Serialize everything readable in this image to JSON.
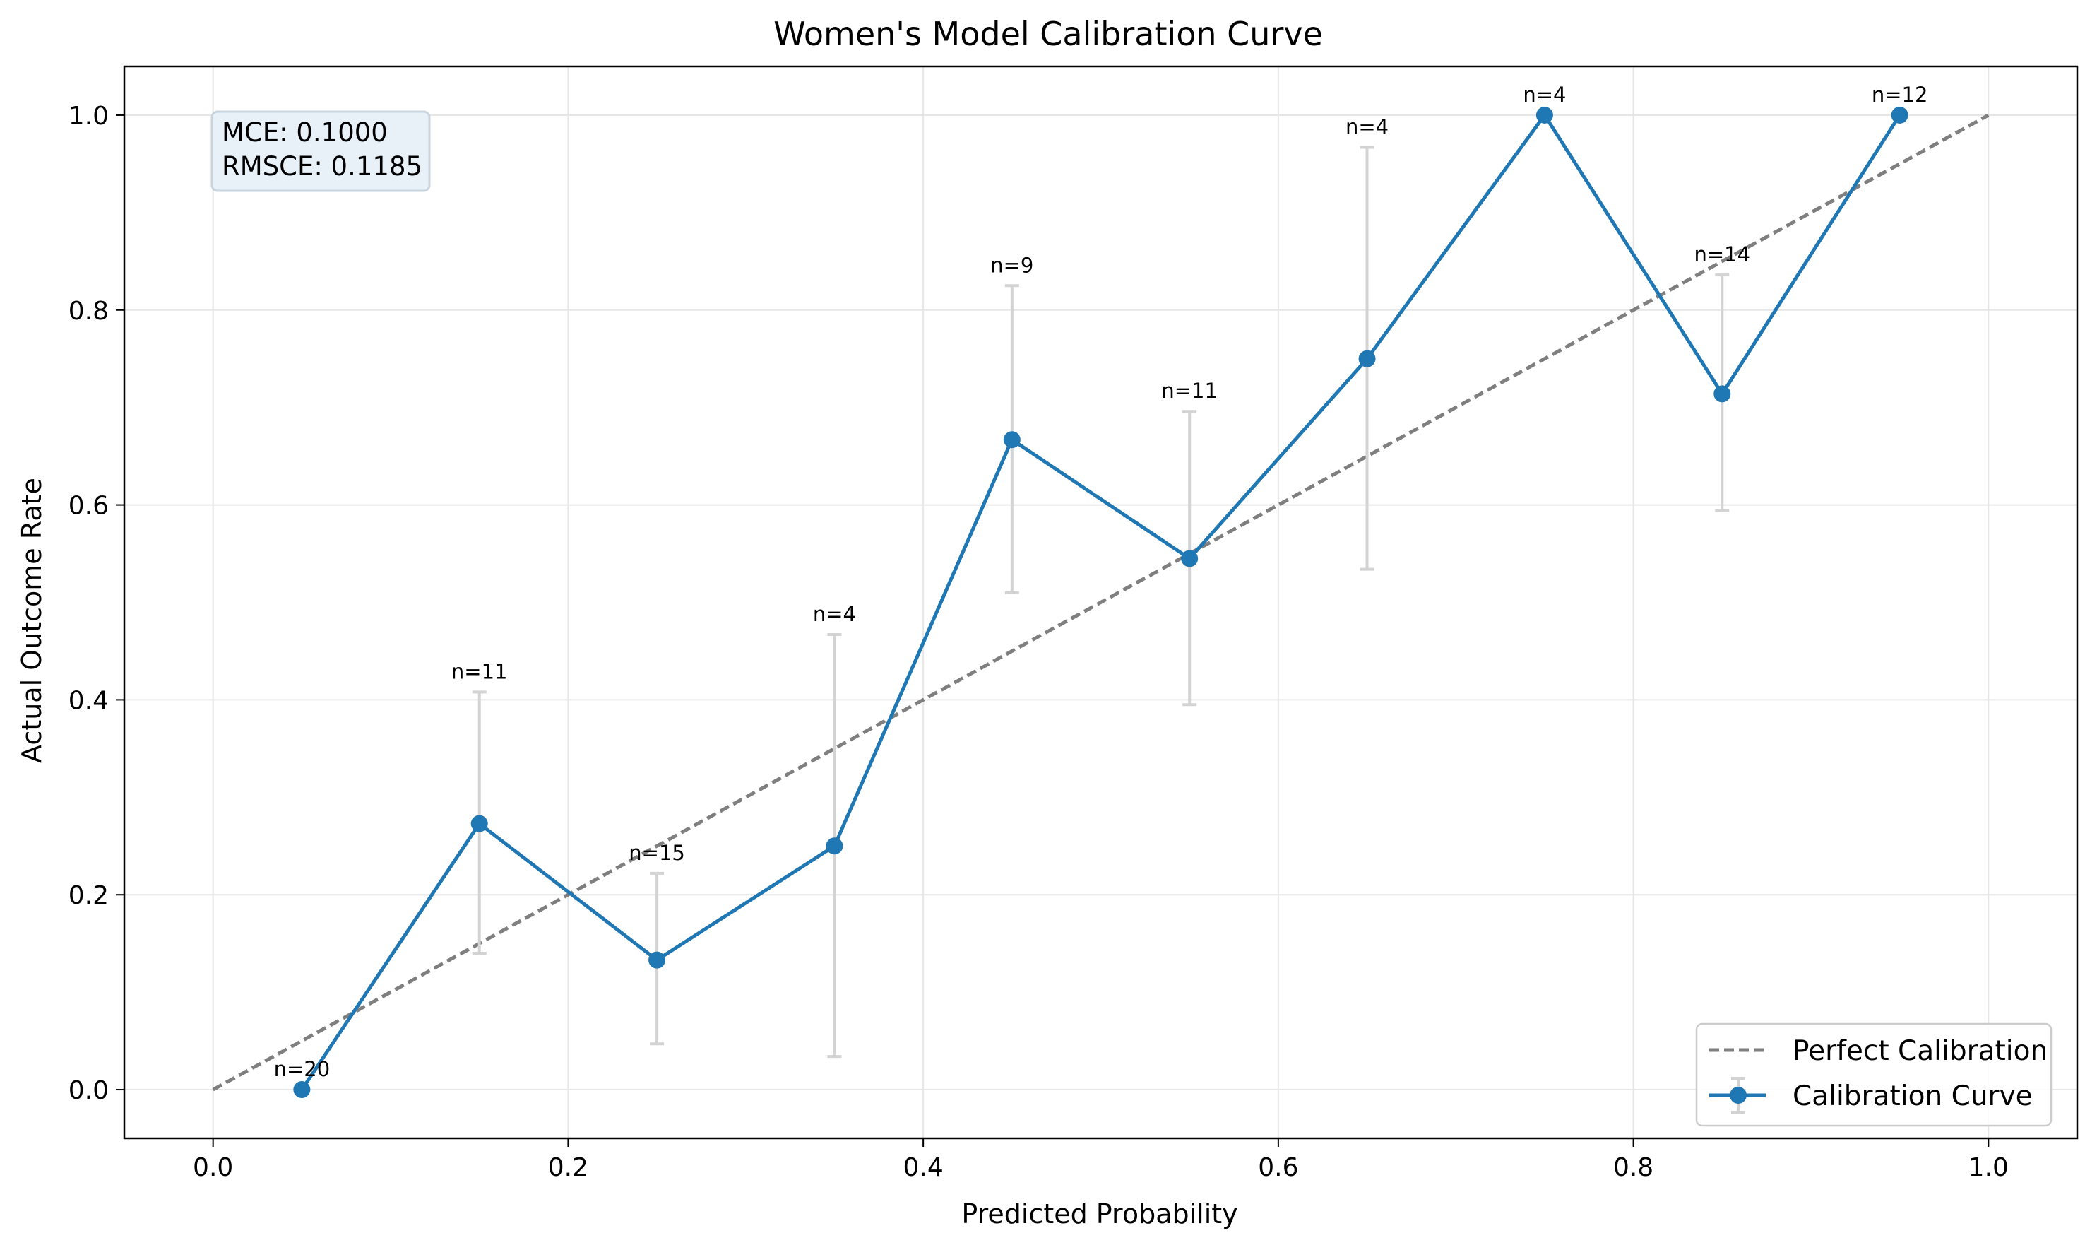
{
  "chart_data": {
    "type": "line",
    "title": "Women's Model Calibration Curve",
    "xlabel": "Predicted Probability",
    "ylabel": "Actual Outcome Rate",
    "xlim": [
      -0.05,
      1.05
    ],
    "ylim": [
      -0.05,
      1.05
    ],
    "xticks": [
      0.0,
      0.2,
      0.4,
      0.6,
      0.8,
      1.0
    ],
    "yticks": [
      0.0,
      0.2,
      0.4,
      0.6,
      0.8,
      1.0
    ],
    "xtick_labels": [
      "0.0",
      "0.2",
      "0.4",
      "0.6",
      "0.8",
      "1.0"
    ],
    "ytick_labels": [
      "0.0",
      "0.2",
      "0.4",
      "0.6",
      "0.8",
      "1.0"
    ],
    "grid": true,
    "legend_position": "bottom-right",
    "series": [
      {
        "name": "Perfect Calibration",
        "style": "dashed",
        "color": "#7f7f7f",
        "x": [
          0.0,
          1.0
        ],
        "y": [
          0.0,
          1.0
        ]
      },
      {
        "name": "Calibration Curve",
        "style": "solid-markers",
        "color": "#1f77b4",
        "errorbar_color": "#d3d3d3",
        "x": [
          0.05,
          0.15,
          0.25,
          0.35,
          0.45,
          0.55,
          0.65,
          0.75,
          0.85,
          0.95
        ],
        "y": [
          0.0,
          0.273,
          0.133,
          0.25,
          0.667,
          0.545,
          0.75,
          1.0,
          0.714,
          1.0
        ],
        "err_low": [
          0.0,
          0.14,
          0.047,
          0.034,
          0.51,
          0.395,
          0.534,
          1.0,
          0.594,
          1.0
        ],
        "err_high": [
          0.0,
          0.408,
          0.222,
          0.467,
          0.825,
          0.696,
          0.967,
          1.0,
          0.836,
          1.0
        ],
        "counts": [
          "n=20",
          "n=11",
          "n=15",
          "n=4",
          "n=9",
          "n=11",
          "n=4",
          "n=4",
          "n=14",
          "n=12"
        ]
      }
    ],
    "annotations": {
      "mce": "MCE: 0.1000",
      "rmsce": "RMSCE: 0.1185"
    }
  }
}
